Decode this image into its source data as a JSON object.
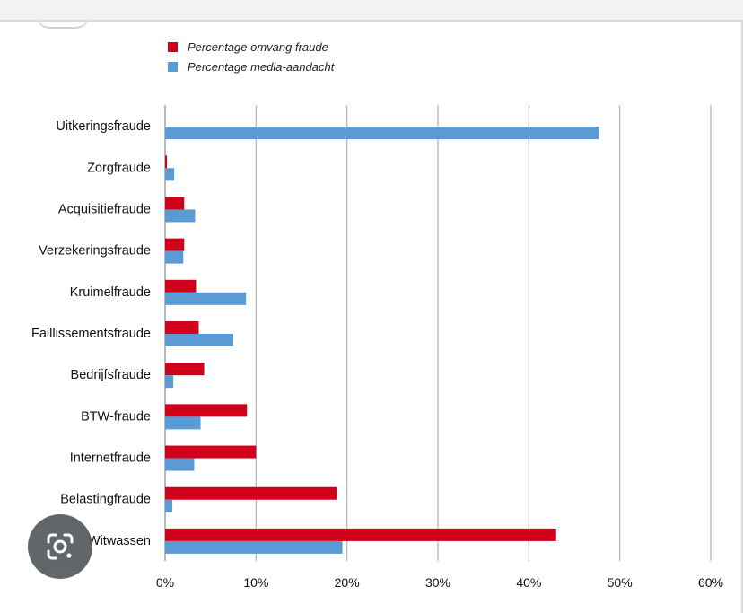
{
  "chart_data": {
    "type": "bar",
    "orientation": "horizontal",
    "categories": [
      "Uitkeringsfraude",
      "Zorgfraude",
      "Acquisitiefraude",
      "Verzekeringsfraude",
      "Kruimelfraude",
      "Faillissementsfraude",
      "Bedrijfsfraude",
      "BTW-fraude",
      "Internetfraude",
      "Belastingfraude",
      "Witwassen"
    ],
    "series": [
      {
        "name": "Percentage omvang fraude",
        "color": "#d0021b",
        "values": [
          0,
          0.2,
          2.1,
          2.1,
          3.4,
          3.7,
          4.3,
          9.0,
          10.0,
          18.9,
          43.0
        ]
      },
      {
        "name": "Percentage media-aandacht",
        "color": "#5b9bd5",
        "values": [
          47.7,
          1.0,
          3.3,
          2.0,
          8.9,
          7.5,
          0.9,
          3.9,
          3.2,
          0.8,
          19.5
        ]
      }
    ],
    "xlim": [
      0,
      60
    ],
    "x_ticks": [
      "0%",
      "10%",
      "20%",
      "30%",
      "40%",
      "50%",
      "60%"
    ],
    "grid": "vertical",
    "legend_position": "top-left"
  },
  "icons": {
    "lens": "google-lens-icon"
  }
}
